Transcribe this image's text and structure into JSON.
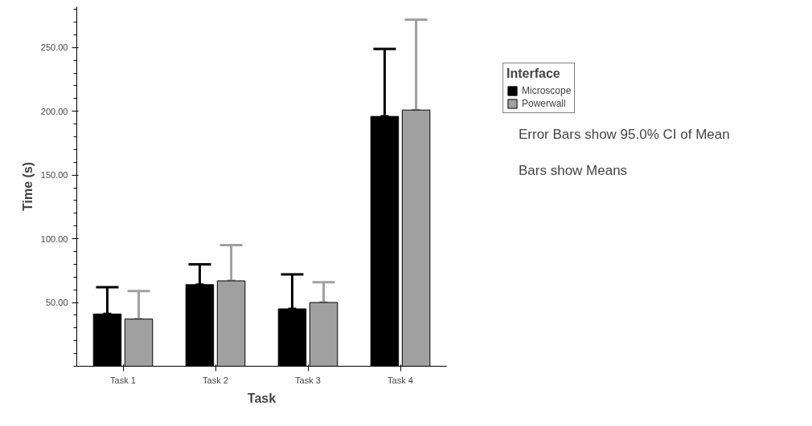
{
  "chart_data": {
    "type": "bar",
    "xlabel": "Task",
    "ylabel": "Time (s)",
    "legend_title": "Interface",
    "legend": "top right",
    "categories": [
      "Task 1",
      "Task 2",
      "Task 3",
      "Task 4"
    ],
    "series": [
      {
        "name": "Microscope",
        "color": "#000000",
        "values": [
          41,
          64,
          45,
          196
        ],
        "errors": [
          [
            41,
            62
          ],
          [
            64,
            80
          ],
          [
            45,
            72
          ],
          [
            196,
            249
          ]
        ]
      },
      {
        "name": "Powerwall",
        "color": "#a0a0a0",
        "values": [
          37,
          67,
          50,
          201
        ],
        "errors": [
          [
            37,
            59
          ],
          [
            67,
            95
          ],
          [
            50,
            66
          ],
          [
            201,
            272
          ]
        ]
      }
    ],
    "ylim": [
      0,
      282
    ],
    "yticks": [
      {
        "value": 50,
        "label": "50.00"
      },
      {
        "value": 100,
        "label": "100.00"
      },
      {
        "value": 150,
        "label": "150.00"
      },
      {
        "value": 200,
        "label": "200.00"
      },
      {
        "value": 250,
        "label": "250.00"
      }
    ],
    "grid": false,
    "annotations": [
      "Error Bars show 95.0% CI of Mean",
      "Bars show Means"
    ]
  }
}
